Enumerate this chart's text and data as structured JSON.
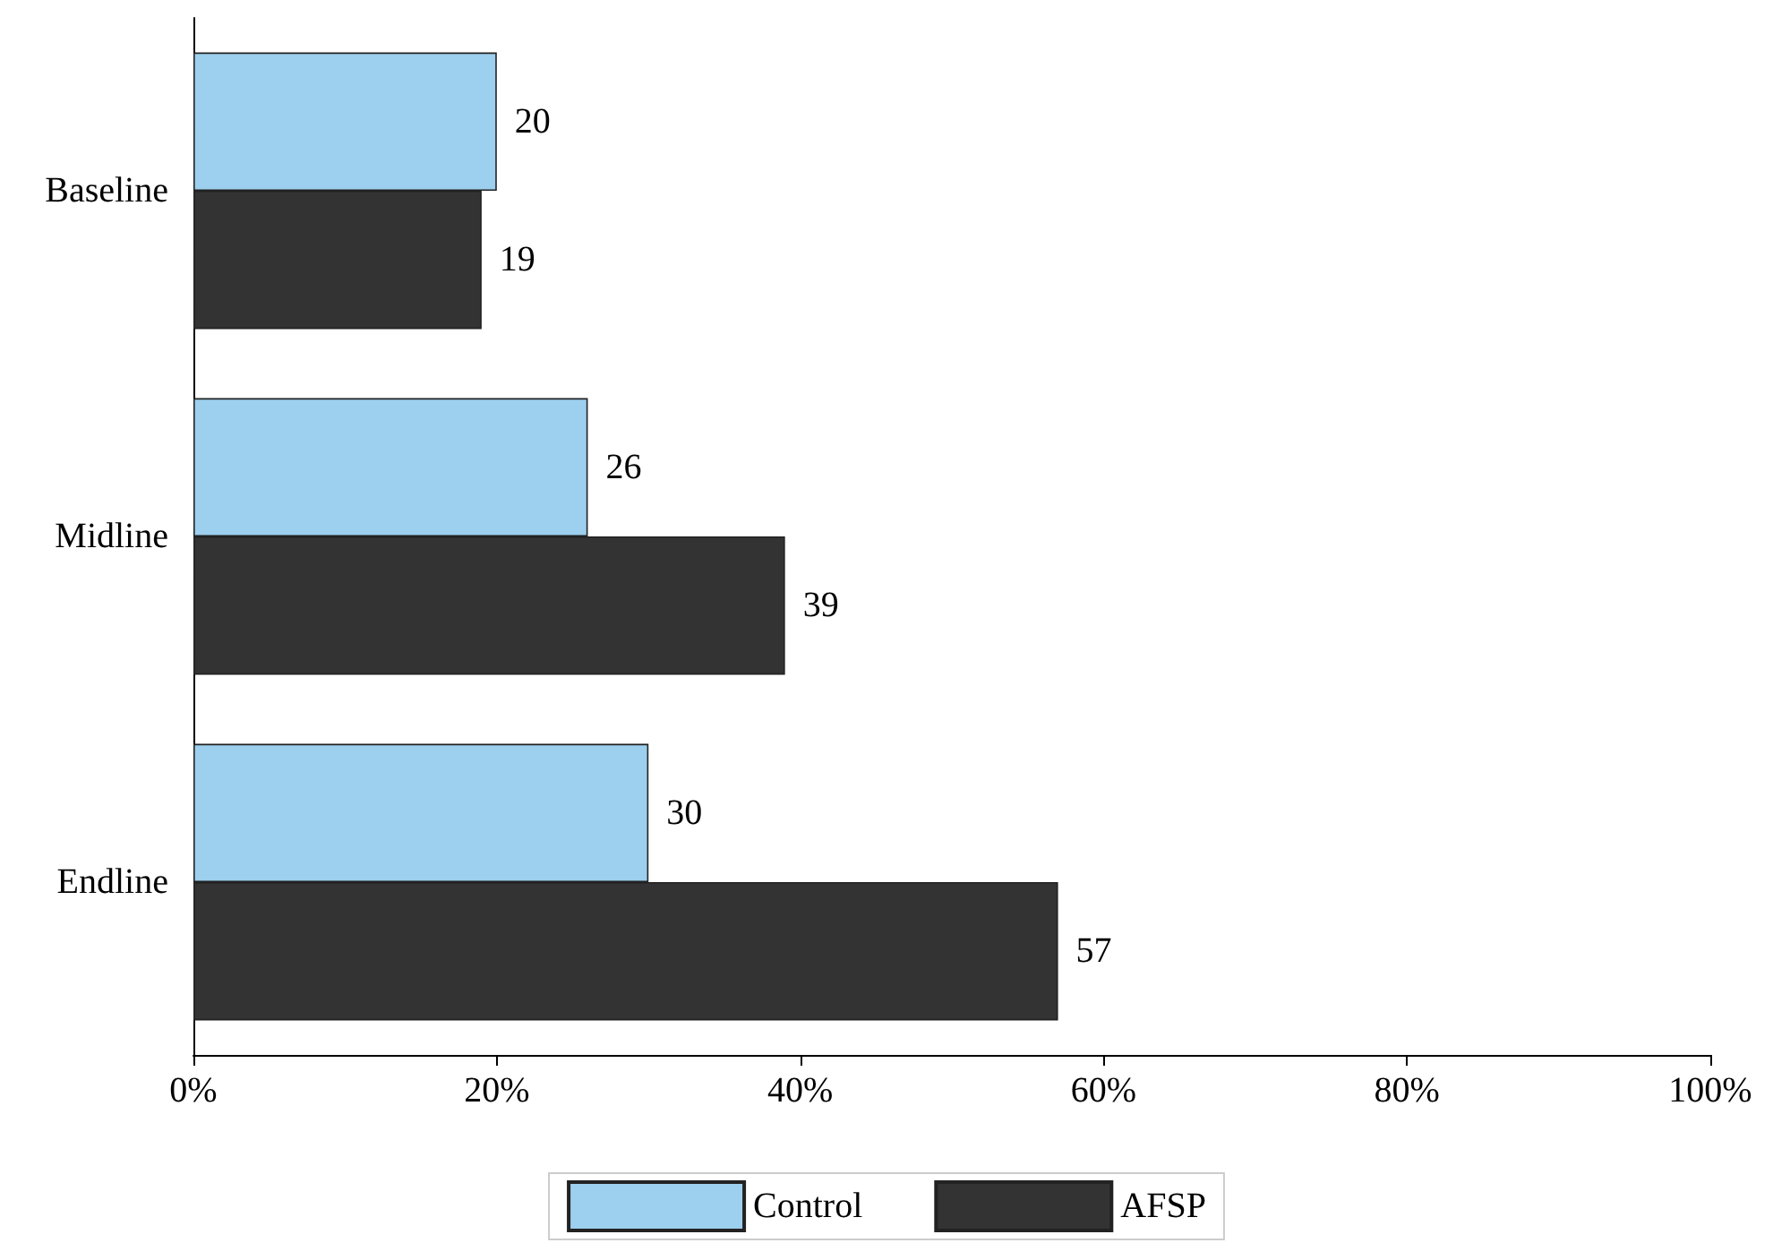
{
  "chart_data": {
    "type": "bar",
    "orientation": "horizontal",
    "categories": [
      "Baseline",
      "Midline",
      "Endline"
    ],
    "series": [
      {
        "name": "Control",
        "color": "#9dcfee",
        "values": [
          20,
          26,
          30
        ]
      },
      {
        "name": "AFSP",
        "color": "#333333",
        "values": [
          19,
          39,
          57
        ]
      }
    ],
    "xlim": [
      0,
      100
    ],
    "xticks": [
      {
        "value": 0,
        "label": "0%"
      },
      {
        "value": 20,
        "label": "20%"
      },
      {
        "value": 40,
        "label": "40%"
      },
      {
        "value": 60,
        "label": "60%"
      },
      {
        "value": 80,
        "label": "80%"
      },
      {
        "value": 100,
        "label": "100%"
      }
    ],
    "data_labels": true,
    "grid": false,
    "legend": "bottom"
  }
}
